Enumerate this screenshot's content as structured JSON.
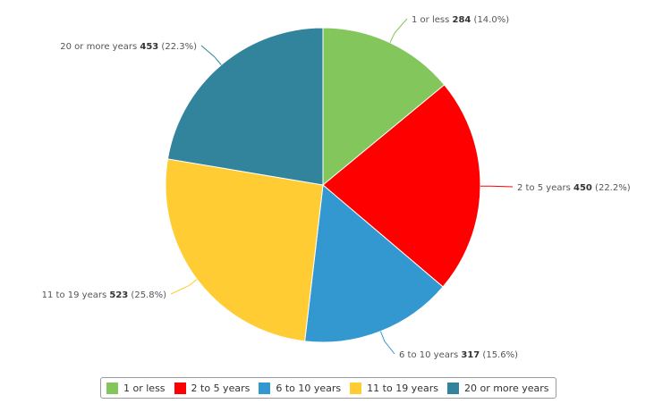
{
  "chart_data": {
    "type": "pie",
    "title": "",
    "slices": [
      {
        "label": "1 or less",
        "value": 284,
        "percent": "14.0%",
        "color": "#82C65C"
      },
      {
        "label": "2 to 5 years",
        "value": 450,
        "percent": "22.2%",
        "color": "#FF0000"
      },
      {
        "label": "6 to 10 years",
        "value": 317,
        "percent": "15.6%",
        "color": "#3498D0"
      },
      {
        "label": "11 to 19 years",
        "value": 523,
        "percent": "25.8%",
        "color": "#FFCC33"
      },
      {
        "label": "20 or more years",
        "value": 453,
        "percent": "22.3%",
        "color": "#31849B"
      }
    ],
    "legend_position": "bottom"
  }
}
